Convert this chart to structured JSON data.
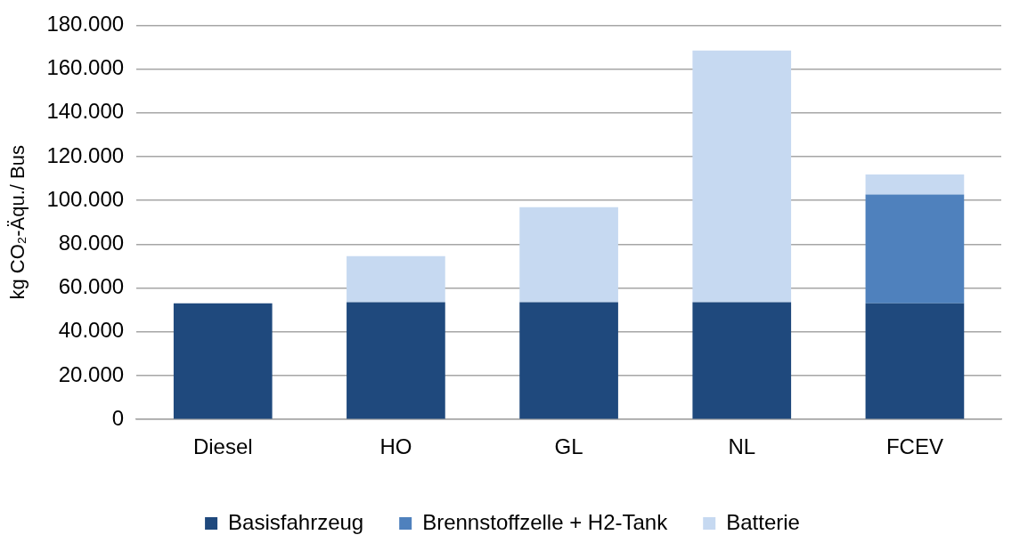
{
  "chart_data": {
    "type": "bar",
    "stacked": true,
    "ylabel": "kg CO₂-Äqu./ Bus",
    "categories": [
      "Diesel",
      "HO",
      "GL",
      "NL",
      "FCEV"
    ],
    "series": [
      {
        "name": "Basisfahrzeug",
        "color": "#1f497d",
        "values": [
          53000,
          53500,
          53500,
          53500,
          53000
        ]
      },
      {
        "name": "Brennstoffzelle + H2-Tank",
        "color": "#4f81bd",
        "values": [
          null,
          null,
          null,
          null,
          49700
        ]
      },
      {
        "name": "Batterie",
        "color": "#c6d9f1",
        "values": [
          null,
          21100,
          43400,
          115000,
          9200
        ]
      }
    ],
    "ylim": [
      0,
      180000
    ],
    "yticks": [
      0,
      {
        "value": 20000,
        "label": "20.000"
      },
      {
        "value": 40000,
        "label": "40.000"
      },
      {
        "value": 60000,
        "label": "60.000"
      },
      {
        "value": 80000,
        "label": "80.000"
      },
      {
        "value": 100000,
        "label": "100.000"
      },
      {
        "value": 120000,
        "label": "120.000"
      },
      {
        "value": 140000,
        "label": "140.000"
      },
      {
        "value": 160000,
        "label": "160.000"
      },
      {
        "value": 180000,
        "label": "180.000"
      }
    ],
    "grid": "y",
    "legend": "bottom"
  }
}
